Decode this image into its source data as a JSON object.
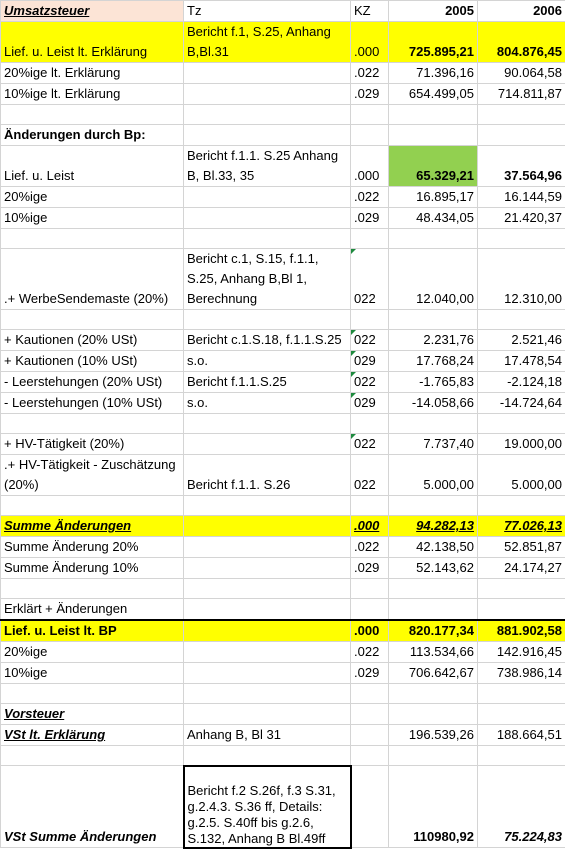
{
  "table": {
    "rows": [
      [
        "Umsatzsteuer",
        "Tz",
        "KZ",
        "2005",
        "2006"
      ],
      [
        "Lief. u. Leist lt. Erklärung",
        "Bericht f.1, S.25,  Anhang B,Bl.31",
        ".000",
        "725.895,21",
        "804.876,45"
      ],
      [
        "20%ige lt. Erklärung",
        null,
        ".022",
        "71.396,16",
        "90.064,58"
      ],
      [
        "10%ige lt. Erklärung",
        null,
        ".029",
        "654.499,05",
        "714.811,87"
      ],
      [],
      [
        "Änderungen durch Bp:"
      ],
      [
        "Lief. u. Leist",
        "Bericht f.1.1. S.25 Anhang B, Bl.33, 35",
        ".000",
        "65.329,21",
        "37.564,96"
      ],
      [
        "20%ige",
        null,
        ".022",
        "16.895,17",
        "16.144,59"
      ],
      [
        "10%ige",
        null,
        ".029",
        "48.434,05",
        "21.420,37"
      ],
      [],
      [
        ".+ WerbeSendemaste (20%)",
        "Bericht c.1, S.15, f.1.1, S.25, Anhang B,Bl 1, Berechnung",
        "022",
        "12.040,00",
        "12.310,00"
      ],
      [],
      [
        "+ Kautionen (20% USt)",
        "Bericht c.1.S.18, f.1.1.S.25",
        "022",
        "2.231,76",
        "2.521,46"
      ],
      [
        "+ Kautionen (10% USt)",
        "s.o.",
        "029",
        "17.768,24",
        "17.478,54"
      ],
      [
        "- Leerstehungen (20% USt)",
        "Bericht f.1.1.S.25",
        "022",
        "-1.765,83",
        "-2.124,18"
      ],
      [
        "- Leerstehungen (10% USt)",
        "s.o.",
        "029",
        "-14.058,66",
        "-14.724,64"
      ],
      [],
      [
        "+ HV-Tätigkeit (20%)",
        null,
        "022",
        "7.737,40",
        "19.000,00"
      ],
      [
        ".+ HV-Tätigkeit - Zuschätzung (20%)",
        "Bericht f.1.1. S.26",
        "022",
        "5.000,00",
        "5.000,00"
      ],
      [],
      [
        "Summe Änderungen",
        null,
        ".000",
        "94.282,13",
        "77.026,13"
      ],
      [
        "Summe Änderung 20%",
        null,
        ".022",
        "42.138,50",
        "52.851,87"
      ],
      [
        "Summe Änderung 10%",
        null,
        ".029",
        "52.143,62",
        "24.174,27"
      ],
      [],
      [
        "Erklärt + Änderungen"
      ],
      [
        "Lief. u. Leist lt. BP",
        null,
        ".000",
        "820.177,34",
        "881.902,58"
      ],
      [
        "20%ige",
        null,
        ".022",
        "113.534,66",
        "142.916,45"
      ],
      [
        "10%ige",
        null,
        ".029",
        "706.642,67",
        "738.986,14"
      ],
      [],
      [
        "Vorsteuer"
      ],
      [
        "VSt lt. Erklärung",
        "Anhang B, Bl 31",
        null,
        "196.539,26",
        "188.664,51"
      ],
      [],
      [
        "VSt Summe Änderungen",
        "Bericht f.2 S.26f, f.3 S.31, g.2.4.3. S.36 ff, Details: g.2.5. S.40ff bis g.2.6, S.132, Anhang B Bl.49ff",
        null,
        "110980,92",
        "75.224,83"
      ]
    ]
  }
}
